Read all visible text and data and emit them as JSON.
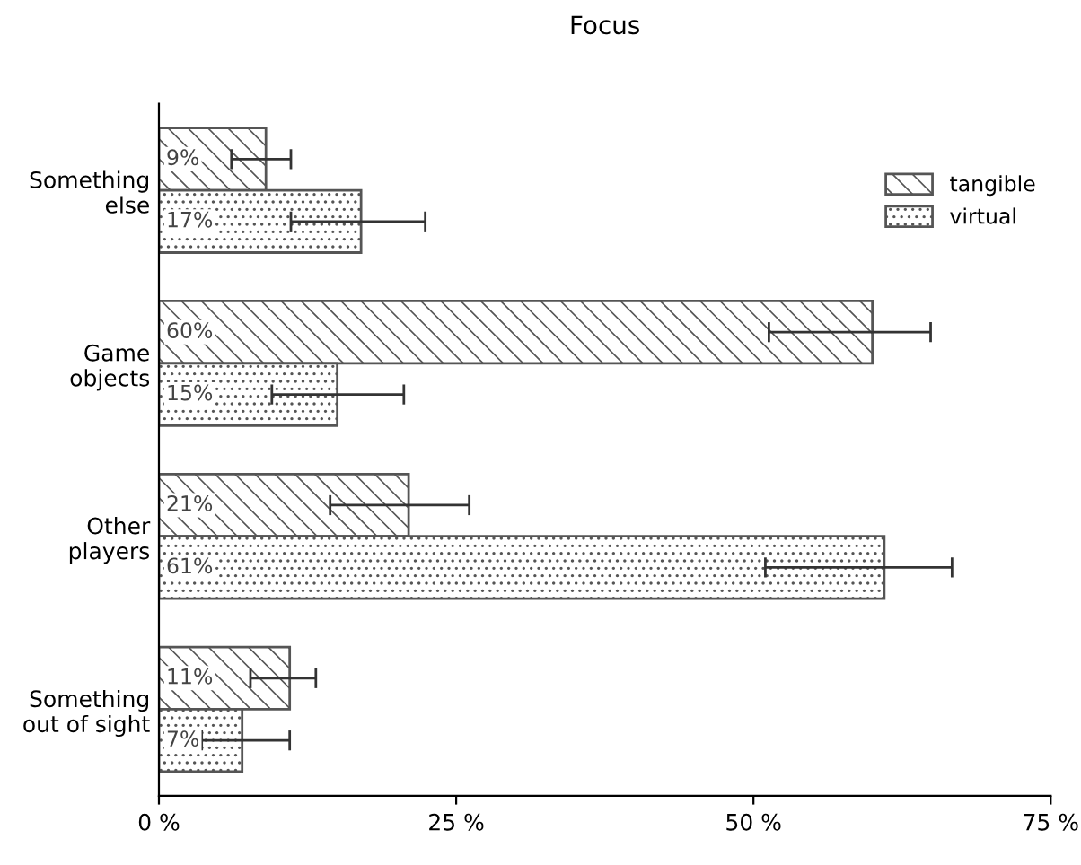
{
  "chart_data": {
    "type": "bar",
    "orientation": "horizontal",
    "title": "Focus",
    "categories": [
      "Something\nelse",
      "Game\nobjects",
      "Other\nplayers",
      "Something\nout of sight"
    ],
    "series": [
      {
        "name": "tangible",
        "color": "#555555",
        "values": [
          9,
          60,
          21,
          11
        ],
        "value_labels": [
          "9%",
          "60%",
          "21%",
          "11%"
        ],
        "errors": [
          [
            6.1,
            11.1
          ],
          [
            51.3,
            64.9
          ],
          [
            14.4,
            26.1
          ],
          [
            7.7,
            13.2
          ]
        ]
      },
      {
        "name": "virtual",
        "color": "#555555",
        "values": [
          17,
          15,
          61,
          7
        ],
        "value_labels": [
          "17%",
          "15%",
          "61%",
          "7%"
        ],
        "errors": [
          [
            11.1,
            22.4
          ],
          [
            9.5,
            20.6
          ],
          [
            51.0,
            66.7
          ],
          [
            3.6,
            11.0
          ]
        ]
      }
    ],
    "xlim": [
      0,
      75
    ],
    "xticks": [
      {
        "value": 0,
        "label": "0 %"
      },
      {
        "value": 25,
        "label": "25 %"
      },
      {
        "value": 50,
        "label": "50 %"
      },
      {
        "value": 75,
        "label": "75 %"
      }
    ],
    "legend": "top right",
    "grid": false
  }
}
